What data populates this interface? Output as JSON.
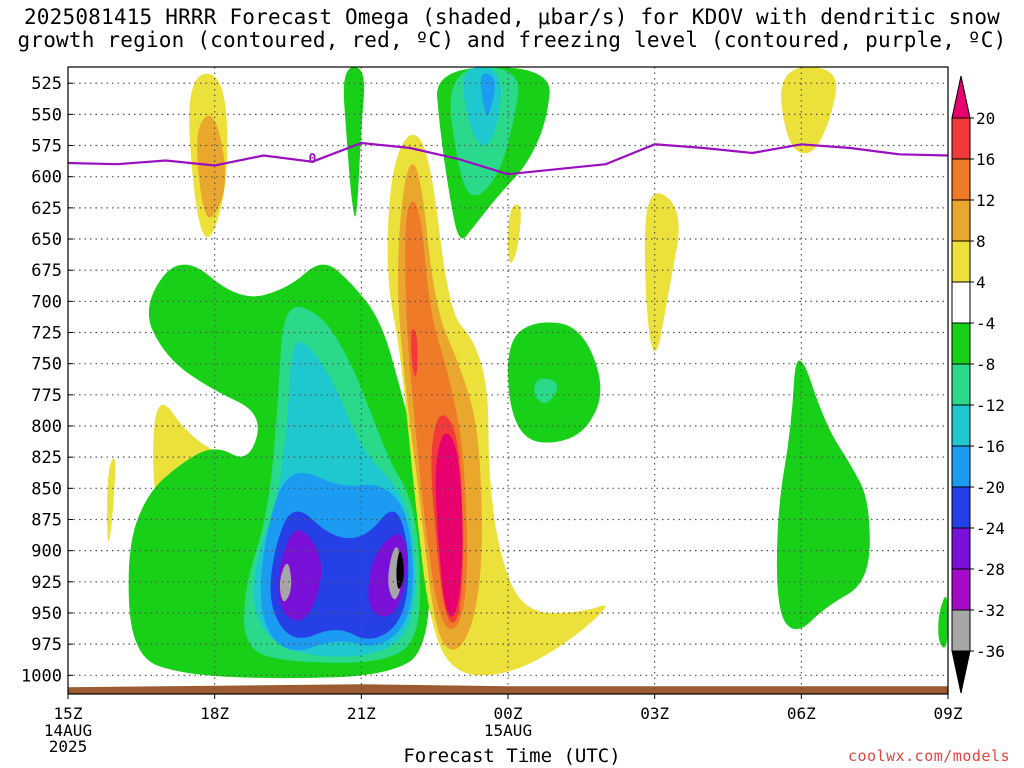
{
  "chart_data": {
    "type": "heatmap",
    "title_line1": "2025081415 HRRR Forecast Omega (shaded, μbar/s) for KDOV with dendritic snow",
    "title_line2": "growth region (contoured, red, ºC) and freezing level (contoured, purple, ºC)",
    "xlabel": "Forecast Time (UTC)",
    "ylabel": "",
    "credit": "coolwx.com/models",
    "x_ticks": [
      {
        "hour": 0,
        "label": "15Z",
        "sub": [
          "14AUG",
          "2025"
        ]
      },
      {
        "hour": 3,
        "label": "18Z",
        "sub": []
      },
      {
        "hour": 6,
        "label": "21Z",
        "sub": []
      },
      {
        "hour": 9,
        "label": "00Z",
        "sub": [
          "15AUG"
        ]
      },
      {
        "hour": 12,
        "label": "03Z",
        "sub": []
      },
      {
        "hour": 15,
        "label": "06Z",
        "sub": []
      },
      {
        "hour": 18,
        "label": "09Z",
        "sub": []
      }
    ],
    "xlim_hours_from_15Z": [
      0,
      18
    ],
    "y_ticks": [
      525,
      550,
      575,
      600,
      625,
      650,
      675,
      700,
      725,
      750,
      775,
      800,
      825,
      850,
      875,
      900,
      925,
      950,
      975,
      1000
    ],
    "ylim_hPa": [
      512,
      1015
    ],
    "grid": true,
    "colorbar": {
      "levels": [
        20,
        16,
        12,
        8,
        4,
        -4,
        -8,
        -12,
        -16,
        -20,
        -24,
        -28,
        -32,
        -36
      ],
      "colors": [
        "#e8006e",
        "#f23a3a",
        "#ef7a28",
        "#e9a72e",
        "#ece13a",
        "#ffffff",
        "#17d017",
        "#2ad98a",
        "#1fc8cf",
        "#1b9cf2",
        "#2640e8",
        "#7a10d8",
        "#a40ac8",
        "#a6a6a6",
        "#000000"
      ]
    },
    "freezing_level": {
      "label": "0",
      "color": "#9a10c0",
      "hours": [
        0,
        1,
        2,
        3,
        4,
        5,
        6,
        7,
        8,
        9,
        10,
        11,
        12,
        13,
        14,
        15,
        16,
        17,
        18
      ],
      "pressure_hPa": [
        589,
        590,
        587,
        591,
        583,
        588,
        573,
        577,
        586,
        598,
        594,
        590,
        574,
        577,
        581,
        574,
        577,
        582,
        583
      ]
    },
    "ground_color": "#9b5a30",
    "omega_regions": [
      {
        "color": "#ece13a",
        "points": [
          [
            2.4,
            520
          ],
          [
            3.2,
            515
          ],
          [
            3.3,
            600
          ],
          [
            2.9,
            658
          ],
          [
            2.6,
            630
          ]
        ]
      },
      {
        "color": "#e9a72e",
        "points": [
          [
            2.6,
            560
          ],
          [
            3.0,
            545
          ],
          [
            3.3,
            605
          ],
          [
            2.9,
            640
          ],
          [
            2.7,
            615
          ]
        ]
      },
      {
        "color": "#ece13a",
        "points": [
          [
            14.5,
            512
          ],
          [
            15.8,
            512
          ],
          [
            15.6,
            555
          ],
          [
            15.2,
            585
          ],
          [
            14.7,
            575
          ]
        ]
      },
      {
        "color": "#ece13a",
        "points": [
          [
            11.8,
            605
          ],
          [
            12.6,
            625
          ],
          [
            12.3,
            690
          ],
          [
            12.0,
            755
          ],
          [
            11.8,
            700
          ]
        ]
      },
      {
        "color": "#ece13a",
        "points": [
          [
            9.0,
            625
          ],
          [
            9.3,
            620
          ],
          [
            9.2,
            660
          ],
          [
            9.0,
            675
          ]
        ]
      },
      {
        "color": "#ece13a",
        "points": [
          [
            0.8,
            835
          ],
          [
            1.0,
            820
          ],
          [
            0.9,
            880
          ],
          [
            0.8,
            900
          ]
        ]
      },
      {
        "color": "#ece13a",
        "points": [
          [
            1.8,
            770
          ],
          [
            2.5,
            810
          ],
          [
            3.5,
            830
          ],
          [
            4.3,
            870
          ],
          [
            4.3,
            945
          ],
          [
            4.0,
            985
          ],
          [
            3.2,
            975
          ],
          [
            2.1,
            925
          ],
          [
            1.7,
            845
          ]
        ]
      },
      {
        "color": "#e9a72e",
        "points": [
          [
            2.5,
            840
          ],
          [
            3.5,
            860
          ],
          [
            4.0,
            900
          ],
          [
            4.1,
            945
          ],
          [
            3.7,
            955
          ],
          [
            2.8,
            910
          ],
          [
            2.4,
            870
          ]
        ]
      },
      {
        "color": "#ef7a28",
        "points": [
          [
            3.9,
            890
          ],
          [
            4.1,
            915
          ],
          [
            4.0,
            945
          ],
          [
            3.8,
            920
          ]
        ]
      },
      {
        "color": "#17d017",
        "points": [
          [
            1.5,
            705
          ],
          [
            2.3,
            660
          ],
          [
            3.5,
            700
          ],
          [
            4.5,
            690
          ],
          [
            5.2,
            665
          ],
          [
            5.8,
            685
          ],
          [
            6.4,
            715
          ],
          [
            6.8,
            770
          ],
          [
            7.2,
            830
          ],
          [
            7.4,
            870
          ],
          [
            7.4,
            980
          ],
          [
            6.5,
            1000
          ],
          [
            4.5,
            1003
          ],
          [
            2.4,
            1000
          ],
          [
            1.3,
            985
          ],
          [
            1.2,
            900
          ],
          [
            1.6,
            855
          ],
          [
            2.3,
            830
          ],
          [
            3.0,
            815
          ],
          [
            3.7,
            830
          ],
          [
            4.0,
            790
          ],
          [
            2.9,
            770
          ],
          [
            2.0,
            745
          ]
        ]
      },
      {
        "color": "#2ad98a",
        "points": [
          [
            4.4,
            700
          ],
          [
            5.2,
            710
          ],
          [
            5.8,
            750
          ],
          [
            6.2,
            790
          ],
          [
            6.6,
            830
          ],
          [
            7.0,
            855
          ],
          [
            7.2,
            900
          ],
          [
            7.2,
            970
          ],
          [
            6.5,
            990
          ],
          [
            4.6,
            990
          ],
          [
            3.6,
            980
          ],
          [
            3.6,
            930
          ],
          [
            4.1,
            870
          ],
          [
            4.3,
            780
          ]
        ]
      },
      {
        "color": "#1fc8cf",
        "points": [
          [
            4.6,
            720
          ],
          [
            5.4,
            760
          ],
          [
            6.0,
            820
          ],
          [
            6.8,
            850
          ],
          [
            7.1,
            890
          ],
          [
            7.1,
            960
          ],
          [
            6.4,
            985
          ],
          [
            4.7,
            985
          ],
          [
            3.8,
            960
          ],
          [
            3.8,
            910
          ],
          [
            4.3,
            860
          ],
          [
            4.5,
            790
          ]
        ]
      },
      {
        "color": "#1b9cf2",
        "points": [
          [
            4.5,
            830
          ],
          [
            5.6,
            850
          ],
          [
            6.4,
            845
          ],
          [
            7.0,
            870
          ],
          [
            7.1,
            950
          ],
          [
            6.4,
            980
          ],
          [
            5.5,
            970
          ],
          [
            4.5,
            985
          ],
          [
            3.9,
            955
          ],
          [
            4.0,
            890
          ]
        ]
      },
      {
        "color": "#2640e8",
        "points": [
          [
            4.6,
            860
          ],
          [
            5.4,
            890
          ],
          [
            6.1,
            890
          ],
          [
            6.7,
            860
          ],
          [
            7.0,
            900
          ],
          [
            6.9,
            955
          ],
          [
            6.2,
            975
          ],
          [
            5.5,
            960
          ],
          [
            4.6,
            975
          ],
          [
            4.1,
            945
          ],
          [
            4.2,
            900
          ]
        ]
      },
      {
        "color": "#7a10d8",
        "points": [
          [
            4.7,
            875
          ],
          [
            5.3,
            910
          ],
          [
            4.9,
            960
          ],
          [
            4.3,
            950
          ],
          [
            4.3,
            910
          ]
        ]
      },
      {
        "color": "#7a10d8",
        "points": [
          [
            6.8,
            880
          ],
          [
            7.0,
            910
          ],
          [
            6.7,
            955
          ],
          [
            6.1,
            950
          ],
          [
            6.2,
            905
          ]
        ]
      },
      {
        "color": "#a6a6a6",
        "points": [
          [
            4.5,
            905
          ],
          [
            4.6,
            930
          ],
          [
            4.4,
            945
          ],
          [
            4.3,
            925
          ]
        ]
      },
      {
        "color": "#a6a6a6",
        "points": [
          [
            6.7,
            890
          ],
          [
            6.9,
            915
          ],
          [
            6.7,
            945
          ],
          [
            6.5,
            925
          ]
        ]
      },
      {
        "color": "#000000",
        "points": [
          [
            6.8,
            895
          ],
          [
            6.9,
            920
          ],
          [
            6.75,
            935
          ],
          [
            6.7,
            915
          ]
        ]
      },
      {
        "color": "#17d017",
        "points": [
          [
            5.6,
            512
          ],
          [
            6.1,
            512
          ],
          [
            6.0,
            560
          ],
          [
            5.9,
            640
          ],
          [
            5.8,
            620
          ],
          [
            5.7,
            570
          ]
        ]
      },
      {
        "color": "#17d017",
        "points": [
          [
            7.5,
            512
          ],
          [
            9.9,
            512
          ],
          [
            9.8,
            555
          ],
          [
            9.4,
            590
          ],
          [
            8.8,
            615
          ],
          [
            8.3,
            640
          ],
          [
            8.0,
            655
          ],
          [
            7.8,
            615
          ],
          [
            7.6,
            560
          ]
        ]
      },
      {
        "color": "#2ad98a",
        "points": [
          [
            7.7,
            512
          ],
          [
            9.3,
            512
          ],
          [
            9.1,
            560
          ],
          [
            8.8,
            600
          ],
          [
            8.3,
            620
          ],
          [
            8.0,
            600
          ]
        ]
      },
      {
        "color": "#1fc8cf",
        "points": [
          [
            8.0,
            512
          ],
          [
            8.9,
            512
          ],
          [
            8.8,
            560
          ],
          [
            8.5,
            580
          ],
          [
            8.2,
            560
          ]
        ]
      },
      {
        "color": "#1b9cf2",
        "points": [
          [
            8.4,
            515
          ],
          [
            8.8,
            520
          ],
          [
            8.6,
            555
          ],
          [
            8.5,
            545
          ]
        ]
      },
      {
        "color": "#17d017",
        "points": [
          [
            9.0,
            730
          ],
          [
            9.6,
            715
          ],
          [
            10.5,
            720
          ],
          [
            11.0,
            770
          ],
          [
            10.6,
            805
          ],
          [
            9.9,
            815
          ],
          [
            9.3,
            810
          ],
          [
            9.0,
            780
          ]
        ]
      },
      {
        "color": "#2ad98a",
        "points": [
          [
            9.6,
            760
          ],
          [
            10.1,
            765
          ],
          [
            9.8,
            785
          ],
          [
            9.5,
            775
          ]
        ]
      },
      {
        "color": "#17d017",
        "points": [
          [
            14.9,
            730
          ],
          [
            15.5,
            800
          ],
          [
            16.0,
            830
          ],
          [
            16.4,
            860
          ],
          [
            16.4,
            925
          ],
          [
            15.5,
            945
          ],
          [
            14.9,
            968
          ],
          [
            14.5,
            950
          ],
          [
            14.5,
            870
          ],
          [
            14.8,
            800
          ]
        ]
      },
      {
        "color": "#17d017",
        "points": [
          [
            18.0,
            930
          ],
          [
            18.0,
            980
          ],
          [
            17.8,
            975
          ],
          [
            17.8,
            950
          ]
        ]
      },
      {
        "color": "#ece13a",
        "points": [
          [
            6.6,
            595
          ],
          [
            7.0,
            560
          ],
          [
            7.4,
            580
          ],
          [
            7.8,
            710
          ],
          [
            8.3,
            730
          ],
          [
            8.6,
            770
          ],
          [
            8.6,
            835
          ],
          [
            8.8,
            900
          ],
          [
            9.3,
            950
          ],
          [
            10.5,
            950
          ],
          [
            11.2,
            940
          ],
          [
            10.2,
            975
          ],
          [
            9.0,
            1000
          ],
          [
            7.9,
            1000
          ],
          [
            7.4,
            960
          ],
          [
            7.1,
            860
          ],
          [
            6.8,
            740
          ],
          [
            6.5,
            680
          ]
        ]
      },
      {
        "color": "#e9a72e",
        "points": [
          [
            6.9,
            590
          ],
          [
            7.2,
            590
          ],
          [
            7.5,
            705
          ],
          [
            8.0,
            750
          ],
          [
            8.4,
            800
          ],
          [
            8.5,
            900
          ],
          [
            8.3,
            960
          ],
          [
            7.9,
            985
          ],
          [
            7.5,
            965
          ],
          [
            7.2,
            860
          ],
          [
            6.9,
            770
          ],
          [
            6.7,
            680
          ]
        ]
      },
      {
        "color": "#ef7a28",
        "points": [
          [
            6.9,
            620
          ],
          [
            7.2,
            620
          ],
          [
            7.4,
            710
          ],
          [
            7.8,
            760
          ],
          [
            8.1,
            820
          ],
          [
            8.2,
            920
          ],
          [
            8.0,
            965
          ],
          [
            7.6,
            960
          ],
          [
            7.3,
            880
          ],
          [
            7.0,
            760
          ],
          [
            6.9,
            700
          ]
        ]
      },
      {
        "color": "#f23a3a",
        "points": [
          [
            7.0,
            720
          ],
          [
            7.15,
            725
          ],
          [
            7.15,
            760
          ],
          [
            7.05,
            760
          ]
        ]
      },
      {
        "color": "#f23a3a",
        "points": [
          [
            7.6,
            785
          ],
          [
            8.0,
            805
          ],
          [
            8.1,
            900
          ],
          [
            8.0,
            960
          ],
          [
            7.7,
            955
          ],
          [
            7.5,
            880
          ],
          [
            7.4,
            820
          ]
        ]
      },
      {
        "color": "#e8006e",
        "points": [
          [
            7.7,
            800
          ],
          [
            8.0,
            820
          ],
          [
            8.1,
            900
          ],
          [
            7.95,
            955
          ],
          [
            7.7,
            950
          ],
          [
            7.55,
            880
          ],
          [
            7.5,
            830
          ]
        ]
      }
    ]
  }
}
